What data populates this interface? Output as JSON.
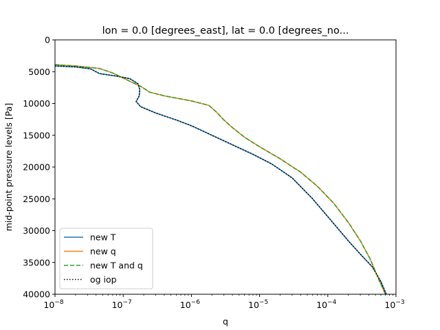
{
  "chart_data": {
    "type": "line",
    "title": "lon = 0.0 [degrees_east], lat = 0.0 [degrees_no...",
    "xlabel": "q",
    "ylabel": "mid-point pressure levels [Pa]",
    "xscale": "log",
    "xlim": [
      1e-08,
      0.001
    ],
    "ylim": [
      40000,
      0
    ],
    "y_inverted": true,
    "grid": false,
    "legend_position": "lower-left",
    "x_ticks": [
      1e-08,
      1e-07,
      1e-06,
      1e-05,
      0.0001,
      0.001
    ],
    "x_tick_labels": [
      {
        "base": "10",
        "exp": "−8"
      },
      {
        "base": "10",
        "exp": "−7"
      },
      {
        "base": "10",
        "exp": "−6"
      },
      {
        "base": "10",
        "exp": "−5"
      },
      {
        "base": "10",
        "exp": "−4"
      },
      {
        "base": "10",
        "exp": "−3"
      }
    ],
    "y_ticks": [
      0,
      5000,
      10000,
      15000,
      20000,
      25000,
      30000,
      35000,
      40000
    ],
    "y_tick_labels": [
      "0",
      "5000",
      "10000",
      "15000",
      "20000",
      "25000",
      "30000",
      "35000",
      "40000"
    ],
    "series": [
      {
        "name": "new T",
        "color": "#1f77b4",
        "style": "solid",
        "x": [
          1e-08,
          2e-08,
          3.3e-08,
          4.5e-08,
          8e-08,
          1.25e-07,
          1.65e-07,
          1.75e-07,
          1.72e-07,
          1.55e-07,
          1.8e-07,
          3e-07,
          6e-07,
          1e-06,
          2e-06,
          4e-06,
          8e-06,
          1.5e-05,
          3e-05,
          6e-05,
          0.0001,
          0.0002,
          0.0003,
          0.00045,
          0.0006,
          0.00072
        ],
        "y": [
          4100,
          4250,
          4550,
          5300,
          5700,
          6100,
          6900,
          7800,
          8800,
          9700,
          10500,
          11500,
          12600,
          13500,
          15000,
          16500,
          18000,
          19500,
          21700,
          25000,
          27800,
          31600,
          33700,
          35700,
          38000,
          40000
        ]
      },
      {
        "name": "new q",
        "color": "#ff7f0e",
        "style": "solid",
        "x": [
          1e-08,
          2e-08,
          4.5e-08,
          7e-08,
          1e-07,
          1.3e-07,
          1.8e-07,
          2.2e-07,
          2.4e-07,
          4e-07,
          1e-06,
          1.8e-06,
          2.3e-06,
          3e-06,
          4e-06,
          6e-06,
          1e-05,
          2e-05,
          4e-05,
          7e-05,
          0.00012,
          0.0002,
          0.0003,
          0.00042,
          0.00055,
          0.0007
        ],
        "y": [
          3900,
          4100,
          4500,
          5200,
          6000,
          6600,
          7300,
          7900,
          8200,
          8800,
          9600,
          10300,
          11300,
          12600,
          13800,
          15300,
          16800,
          18700,
          20800,
          23000,
          25600,
          28700,
          31600,
          34500,
          37500,
          40000
        ]
      },
      {
        "name": "new T and q",
        "color": "#2ca02c",
        "style": "dashed",
        "x": [
          1e-08,
          2e-08,
          4.5e-08,
          7e-08,
          1e-07,
          1.3e-07,
          1.8e-07,
          2.2e-07,
          2.4e-07,
          4e-07,
          1e-06,
          1.8e-06,
          2.3e-06,
          3e-06,
          4e-06,
          6e-06,
          1e-05,
          2e-05,
          4e-05,
          7e-05,
          0.00012,
          0.0002,
          0.0003,
          0.00042,
          0.00055,
          0.0007
        ],
        "y": [
          3900,
          4100,
          4500,
          5200,
          6000,
          6600,
          7300,
          7900,
          8200,
          8800,
          9600,
          10300,
          11300,
          12600,
          13800,
          15300,
          16800,
          18700,
          20800,
          23000,
          25600,
          28700,
          31600,
          34500,
          37500,
          40000
        ]
      },
      {
        "name": "og iop",
        "color": "#000000",
        "style": "dotted",
        "x": [
          1e-08,
          2e-08,
          3.3e-08,
          4.5e-08,
          8e-08,
          1.25e-07,
          1.65e-07,
          1.75e-07,
          1.72e-07,
          1.55e-07,
          1.8e-07,
          3e-07,
          6e-07,
          1e-06,
          2e-06,
          4e-06,
          8e-06,
          1.5e-05,
          3e-05,
          6e-05,
          0.0001,
          0.0002,
          0.0003,
          0.00045,
          0.0006,
          0.00072
        ],
        "y": [
          4100,
          4250,
          4550,
          5300,
          5700,
          6100,
          6900,
          7800,
          8800,
          9700,
          10500,
          11500,
          12600,
          13500,
          15000,
          16500,
          18000,
          19500,
          21700,
          25000,
          27800,
          31600,
          33700,
          35700,
          38000,
          40000
        ]
      }
    ]
  }
}
